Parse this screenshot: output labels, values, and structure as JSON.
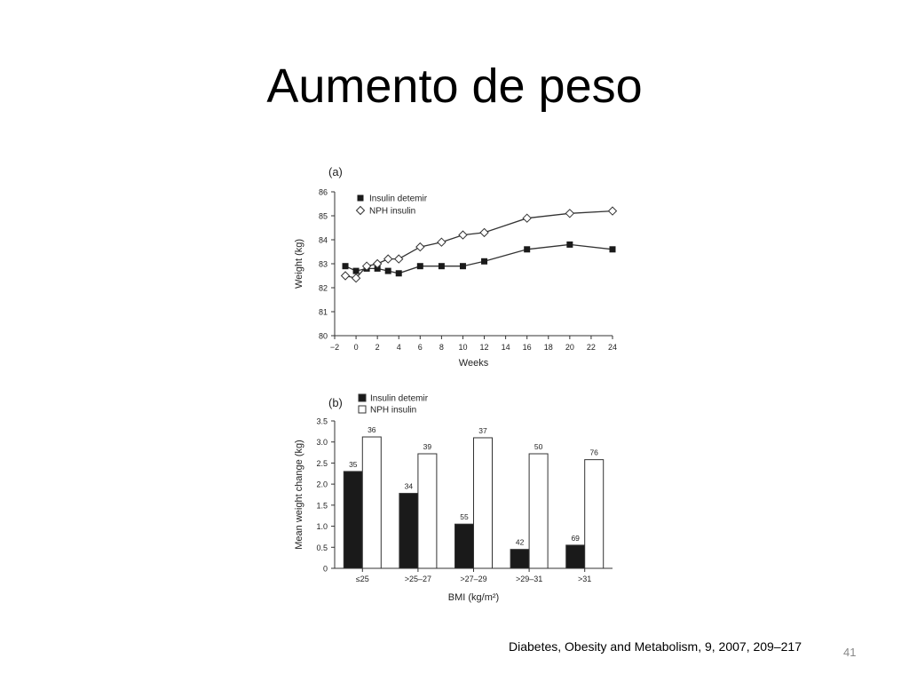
{
  "slide": {
    "title": "Aumento de peso",
    "citation": "Diabetes, Obesity and Metabolism, 9, 2007, 209–217",
    "page_number": "41"
  },
  "colors": {
    "detemir": "#1a1a1a",
    "nph": "#ffffff",
    "axis": "#333333",
    "text": "#222222"
  },
  "chart_data": [
    {
      "type": "line",
      "panel_label": "(a)",
      "xlabel": "Weeks",
      "ylabel": "Weight (kg)",
      "xlim": [
        -2,
        24
      ],
      "ylim": [
        80,
        86
      ],
      "x_ticks": [
        -2,
        0,
        2,
        4,
        6,
        8,
        10,
        12,
        14,
        16,
        18,
        20,
        22,
        24
      ],
      "x_tick_labels": [
        "−2",
        "0",
        "2",
        "4",
        "6",
        "8",
        "10",
        "12",
        "14",
        "16",
        "18",
        "20",
        "22",
        "24"
      ],
      "y_ticks": [
        80,
        81,
        82,
        83,
        84,
        85,
        86
      ],
      "y_tick_labels": [
        "80",
        "81",
        "82",
        "83",
        "84",
        "85",
        "86"
      ],
      "legend_position": "top-left",
      "series": [
        {
          "name": "Insulin detemir",
          "marker": "filled-square",
          "x": [
            -1,
            0,
            1,
            2,
            3,
            4,
            6,
            8,
            10,
            12,
            16,
            20,
            24
          ],
          "y": [
            82.9,
            82.7,
            82.8,
            82.8,
            82.7,
            82.6,
            82.9,
            82.9,
            82.9,
            83.1,
            83.6,
            83.8,
            83.6
          ]
        },
        {
          "name": "NPH insulin",
          "marker": "open-diamond",
          "x": [
            -1,
            0,
            1,
            2,
            3,
            4,
            6,
            8,
            10,
            12,
            16,
            20,
            24
          ],
          "y": [
            82.5,
            82.4,
            82.9,
            83.0,
            83.2,
            83.2,
            83.7,
            83.9,
            84.2,
            84.3,
            84.9,
            85.1,
            85.2
          ]
        }
      ]
    },
    {
      "type": "bar",
      "panel_label": "(b)",
      "xlabel": "BMI (kg/m²)",
      "ylabel": "Mean weight change (kg)",
      "ylim": [
        0,
        3.5
      ],
      "y_ticks": [
        0,
        0.5,
        1.0,
        1.5,
        2.0,
        2.5,
        3.0,
        3.5
      ],
      "y_tick_labels": [
        "0",
        "0.5",
        "1.0",
        "1.5",
        "2.0",
        "2.5",
        "3.0",
        "3.5"
      ],
      "categories": [
        "≤25",
        ">25–27",
        ">27–29",
        ">29–31",
        ">31"
      ],
      "legend_position": "top-left",
      "series": [
        {
          "name": "Insulin detemir",
          "values": [
            2.3,
            1.78,
            1.05,
            0.45,
            0.55
          ],
          "n_labels": [
            "35",
            "34",
            "55",
            "42",
            "69"
          ]
        },
        {
          "name": "NPH insulin",
          "values": [
            3.12,
            2.72,
            3.1,
            2.72,
            2.58
          ],
          "n_labels": [
            "36",
            "39",
            "37",
            "50",
            "76"
          ]
        }
      ]
    }
  ]
}
